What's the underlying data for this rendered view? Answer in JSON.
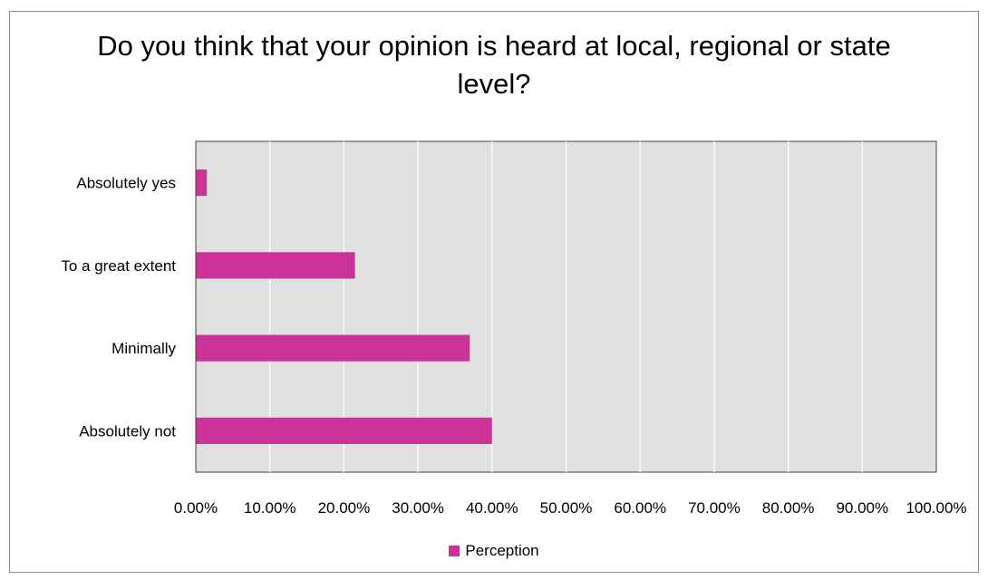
{
  "chart_data": {
    "type": "bar",
    "orientation": "horizontal",
    "title": "Do you think that your opinion is heard at local, regional or state level?",
    "categories": [
      "Absolutely yes",
      "To a great extent",
      "Minimally",
      "Absolutely not"
    ],
    "series": [
      {
        "name": "Perception",
        "values": [
          0.015,
          0.215,
          0.37,
          0.4
        ],
        "color": "#cc3399"
      }
    ],
    "xlim": [
      0,
      1
    ],
    "xticks": [
      0,
      0.1,
      0.2,
      0.3,
      0.4,
      0.5,
      0.6,
      0.7,
      0.8,
      0.9,
      1.0
    ],
    "xtick_labels": [
      "0.00%",
      "10.00%",
      "20.00%",
      "30.00%",
      "40.00%",
      "50.00%",
      "60.00%",
      "70.00%",
      "80.00%",
      "90.00%",
      "100.00%"
    ],
    "grid": true,
    "legend_position": "bottom",
    "plot_background": "#e0e0e0",
    "gridline_color": "#ffffff"
  }
}
